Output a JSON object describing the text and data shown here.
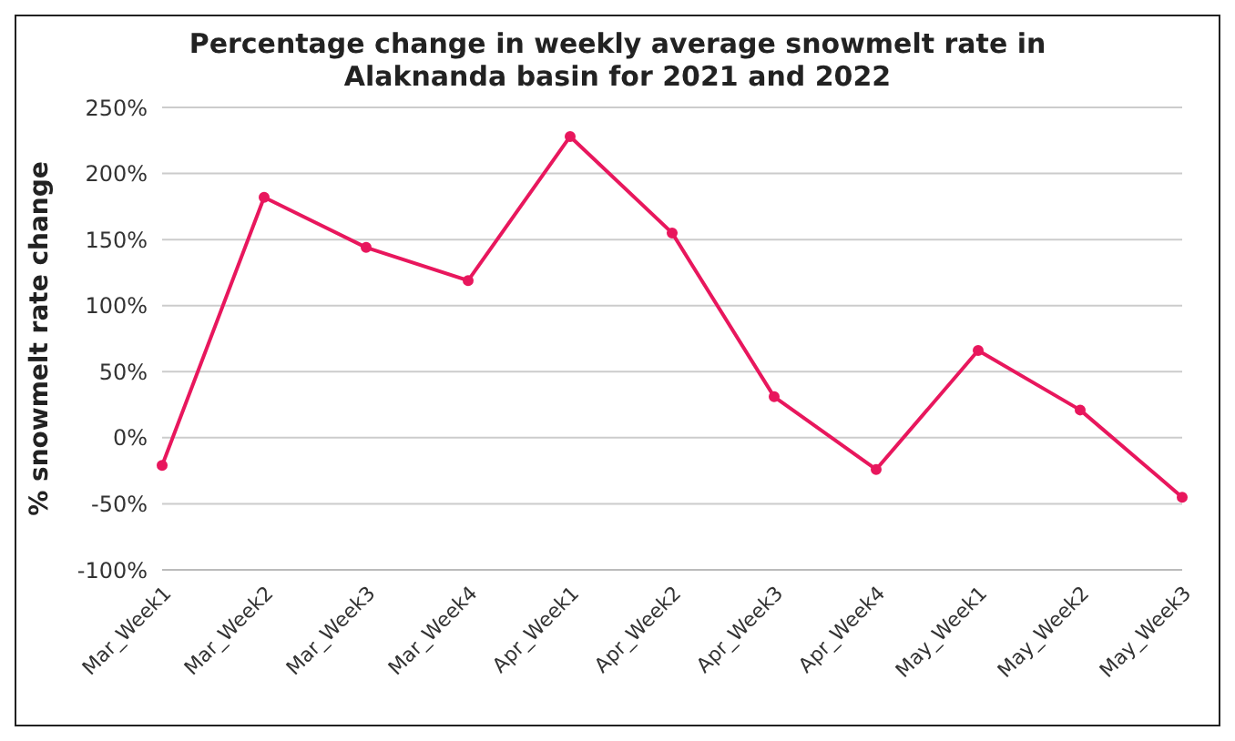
{
  "chart_data": {
    "type": "line",
    "title": "Percentage change in weekly average snowmelt rate in Alaknanda basin for 2021 and 2022",
    "ylabel": "% snowmelt rate change",
    "categories": [
      "Mar_Week1",
      "Mar_Week2",
      "Mar_Week3",
      "Mar_Week4",
      "Apr_Week1",
      "Apr_Week2",
      "Apr_Week3",
      "Apr_Week4",
      "May_Week1",
      "May_Week2",
      "May_Week3"
    ],
    "series": [
      {
        "color": "#e8175d",
        "values": [
          -21,
          182,
          144,
          119,
          228,
          155,
          31,
          -24,
          66,
          21,
          -45
        ]
      }
    ],
    "ylim": [
      -100,
      250
    ],
    "yticks": [
      {
        "value": -100,
        "label": "-100%"
      },
      {
        "value": -50,
        "label": "-50%"
      },
      {
        "value": 0,
        "label": "0%"
      },
      {
        "value": 50,
        "label": "50%"
      },
      {
        "value": 100,
        "label": "100%"
      },
      {
        "value": 150,
        "label": "150%"
      },
      {
        "value": 200,
        "label": "200%"
      },
      {
        "value": 250,
        "label": "250%"
      }
    ],
    "grid": "y",
    "marker": "circle",
    "line_style": "solid"
  }
}
